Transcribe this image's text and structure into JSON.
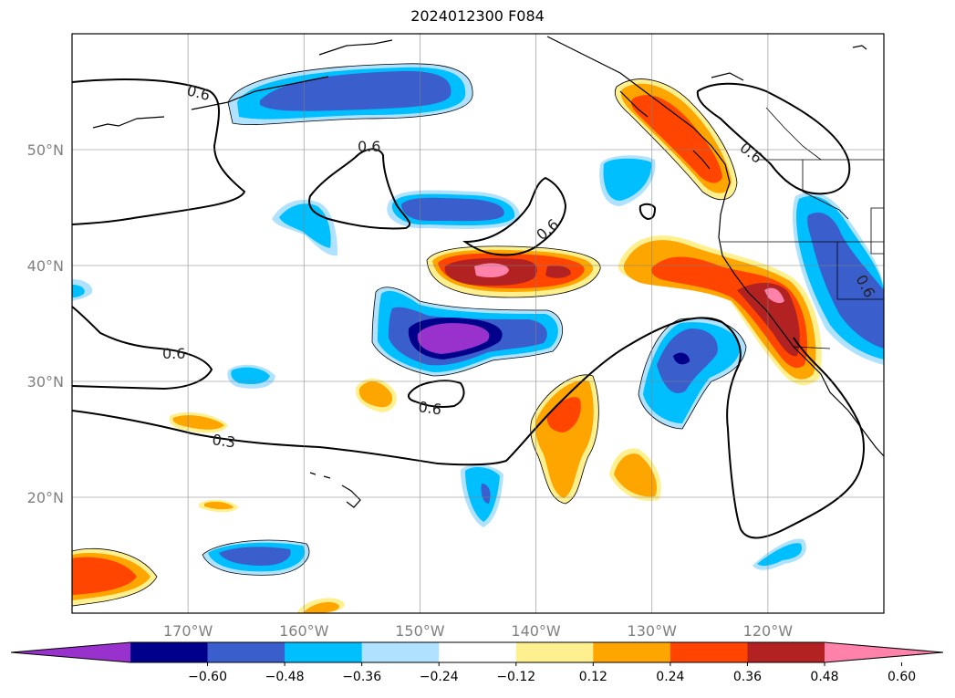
{
  "title": "2024012300 F084",
  "map": {
    "projection": "PlateCarree",
    "lon_range": [
      -180,
      -110
    ],
    "lat_range": [
      10,
      60
    ],
    "lon_ticks": [
      {
        "lon": -170,
        "label": "170°W"
      },
      {
        "lon": -160,
        "label": "160°W"
      },
      {
        "lon": -150,
        "label": "150°W"
      },
      {
        "lon": -140,
        "label": "140°W"
      },
      {
        "lon": -130,
        "label": "130°W"
      },
      {
        "lon": -120,
        "label": "120°W"
      }
    ],
    "lat_ticks": [
      {
        "lat": 50,
        "label": "50°N"
      },
      {
        "lat": 40,
        "label": "40°N"
      },
      {
        "lat": 30,
        "label": "30°N"
      },
      {
        "lat": 20,
        "label": "20°N"
      }
    ],
    "grid": true,
    "contour_labels": [
      "0.6",
      "0.6",
      "0.6",
      "0.6",
      "0.6",
      "0.6",
      "0.3",
      "0.6"
    ]
  },
  "colorbar": {
    "orientation": "horizontal",
    "extend": "both",
    "colors": [
      "#9932cc",
      "#00008b",
      "#3a5fcd",
      "#00bfff",
      "#b0e2ff",
      "#ffffff",
      "#fff08f",
      "#ffa500",
      "#ff4500",
      "#b22222",
      "#ff82ab"
    ],
    "tick_labels": [
      "−0.60",
      "−0.48",
      "−0.36",
      "−0.24",
      "−0.12",
      "0.12",
      "0.24",
      "0.36",
      "0.48",
      "0.60"
    ]
  }
}
